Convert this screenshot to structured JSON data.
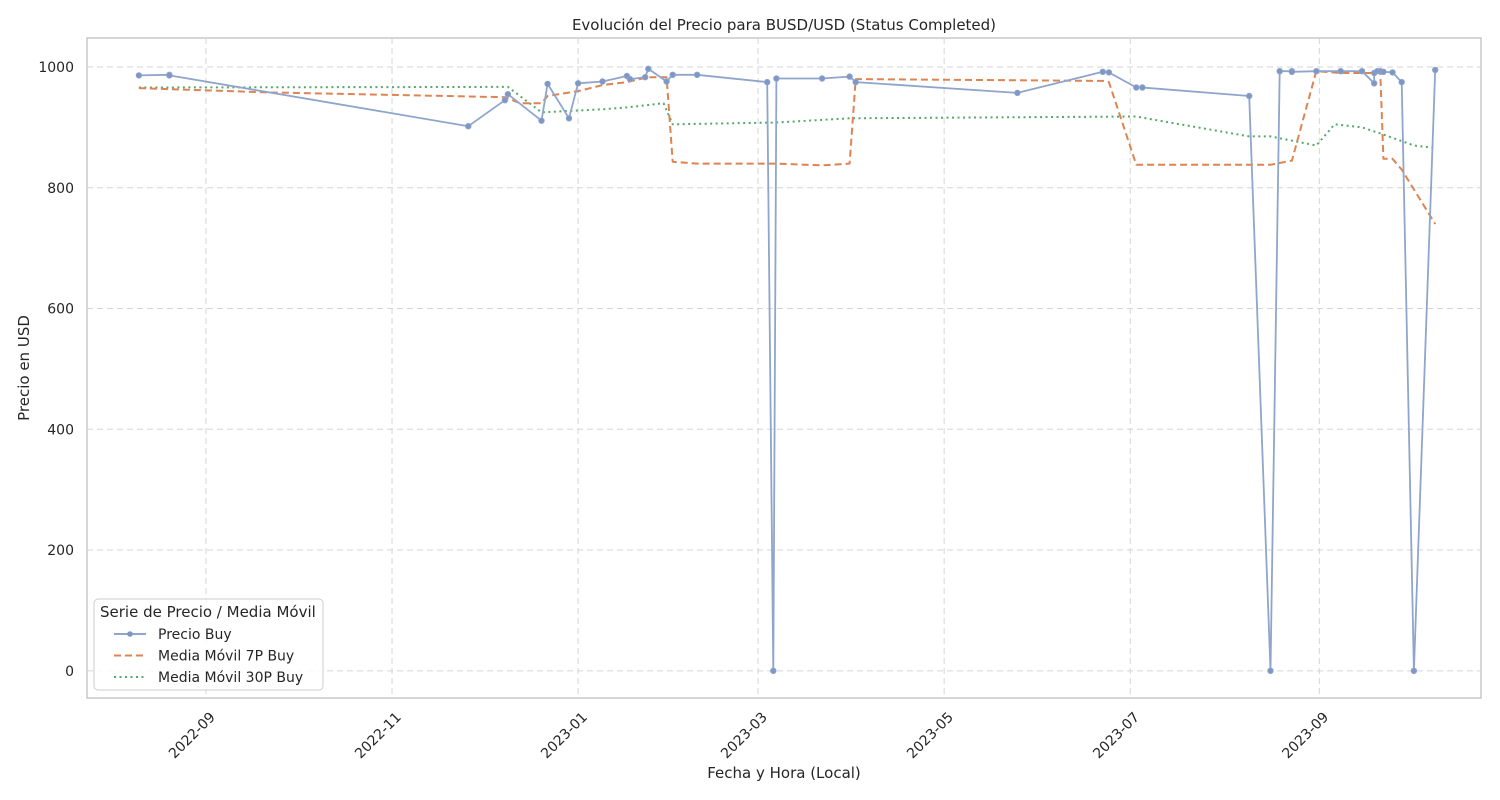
{
  "chart_data": {
    "type": "line",
    "title": "Evolución del Precio para BUSD/USD (Status Completed)",
    "xlabel": "Fecha y Hora (Local)",
    "ylabel": "Precio en USD",
    "x_axis": "date",
    "xlim": [
      "2022-07-24",
      "2023-10-24"
    ],
    "ylim": [
      -45,
      1048
    ],
    "x_ticks": [
      "2022-09",
      "2022-11",
      "2023-01",
      "2023-03",
      "2023-05",
      "2023-07",
      "2023-09"
    ],
    "y_ticks": [
      0,
      200,
      400,
      600,
      800,
      1000
    ],
    "grid": true,
    "legend": {
      "title": "Serie de Precio / Media Móvil",
      "placement": "lower-left"
    },
    "series": [
      {
        "name": "Precio Buy",
        "style": "solid-markers",
        "color": "#8fa5cc",
        "points": [
          [
            "2022-08-10",
            986
          ],
          [
            "2022-08-20",
            987
          ],
          [
            "2022-08-20",
            986
          ],
          [
            "2022-11-26",
            902
          ],
          [
            "2022-12-08",
            945
          ],
          [
            "2022-12-09",
            955
          ],
          [
            "2022-12-20",
            911
          ],
          [
            "2022-12-22",
            972
          ],
          [
            "2022-12-29",
            915
          ],
          [
            "2023-01-01",
            973
          ],
          [
            "2023-01-09",
            976
          ],
          [
            "2023-01-17",
            985
          ],
          [
            "2023-01-18",
            980
          ],
          [
            "2023-01-23",
            983
          ],
          [
            "2023-01-24",
            997
          ],
          [
            "2023-01-30",
            976
          ],
          [
            "2023-02-01",
            987
          ],
          [
            "2023-02-09",
            987
          ],
          [
            "2023-03-04",
            975
          ],
          [
            "2023-03-06",
            0
          ],
          [
            "2023-03-07",
            981
          ],
          [
            "2023-03-22",
            981
          ],
          [
            "2023-03-31",
            984
          ],
          [
            "2023-04-02",
            975
          ],
          [
            "2023-05-25",
            957
          ],
          [
            "2023-06-22",
            992
          ],
          [
            "2023-06-24",
            991
          ],
          [
            "2023-07-03",
            966
          ],
          [
            "2023-07-05",
            966
          ],
          [
            "2023-08-09",
            952
          ],
          [
            "2023-08-16",
            0
          ],
          [
            "2023-08-19",
            993
          ],
          [
            "2023-08-23",
            993
          ],
          [
            "2023-08-23",
            992
          ],
          [
            "2023-08-31",
            993
          ],
          [
            "2023-09-08",
            993
          ],
          [
            "2023-09-15",
            993
          ],
          [
            "2023-09-19",
            973
          ],
          [
            "2023-09-19",
            990
          ],
          [
            "2023-09-20",
            993
          ],
          [
            "2023-09-21",
            993
          ],
          [
            "2023-09-22",
            992
          ],
          [
            "2023-09-25",
            991
          ],
          [
            "2023-09-28",
            975
          ],
          [
            "2023-10-02",
            0
          ],
          [
            "2023-10-09",
            995
          ]
        ]
      },
      {
        "name": "Media Móvil 7P Buy",
        "style": "dashed",
        "color": "#dd8452",
        "points": [
          [
            "2022-08-10",
            965
          ],
          [
            "2022-09-20",
            958
          ],
          [
            "2022-12-08",
            950
          ],
          [
            "2022-12-13",
            940
          ],
          [
            "2022-12-20",
            940
          ],
          [
            "2022-12-22",
            952
          ],
          [
            "2023-01-01",
            960
          ],
          [
            "2023-01-09",
            970
          ],
          [
            "2023-01-17",
            975
          ],
          [
            "2023-01-24",
            983
          ],
          [
            "2023-01-30",
            983
          ],
          [
            "2023-02-01",
            843
          ],
          [
            "2023-02-09",
            840
          ],
          [
            "2023-03-07",
            840
          ],
          [
            "2023-03-22",
            837
          ],
          [
            "2023-03-31",
            840
          ],
          [
            "2023-04-02",
            980
          ],
          [
            "2023-06-22",
            977
          ],
          [
            "2023-06-24",
            975
          ],
          [
            "2023-07-03",
            838
          ],
          [
            "2023-08-09",
            838
          ],
          [
            "2023-08-16",
            838
          ],
          [
            "2023-08-23",
            845
          ],
          [
            "2023-08-31",
            993
          ],
          [
            "2023-09-08",
            990
          ],
          [
            "2023-09-19",
            990
          ],
          [
            "2023-09-21",
            990
          ],
          [
            "2023-09-22",
            848
          ],
          [
            "2023-09-25",
            848
          ],
          [
            "2023-09-28",
            830
          ],
          [
            "2023-10-09",
            740
          ]
        ]
      },
      {
        "name": "Media Móvil 30P Buy",
        "style": "dotted",
        "color": "#55a868",
        "points": [
          [
            "2022-08-10",
            966
          ],
          [
            "2022-12-09",
            967
          ],
          [
            "2022-12-20",
            925
          ],
          [
            "2023-01-09",
            930
          ],
          [
            "2023-01-17",
            933
          ],
          [
            "2023-01-24",
            937
          ],
          [
            "2023-01-29",
            940
          ],
          [
            "2023-02-01",
            905
          ],
          [
            "2023-03-07",
            908
          ],
          [
            "2023-03-31",
            915
          ],
          [
            "2023-07-03",
            918
          ],
          [
            "2023-07-05",
            916
          ],
          [
            "2023-08-09",
            885
          ],
          [
            "2023-08-16",
            885
          ],
          [
            "2023-08-31",
            870
          ],
          [
            "2023-09-06",
            905
          ],
          [
            "2023-09-15",
            900
          ],
          [
            "2023-09-21",
            890
          ],
          [
            "2023-10-02",
            870
          ],
          [
            "2023-10-09",
            866
          ]
        ]
      }
    ]
  }
}
